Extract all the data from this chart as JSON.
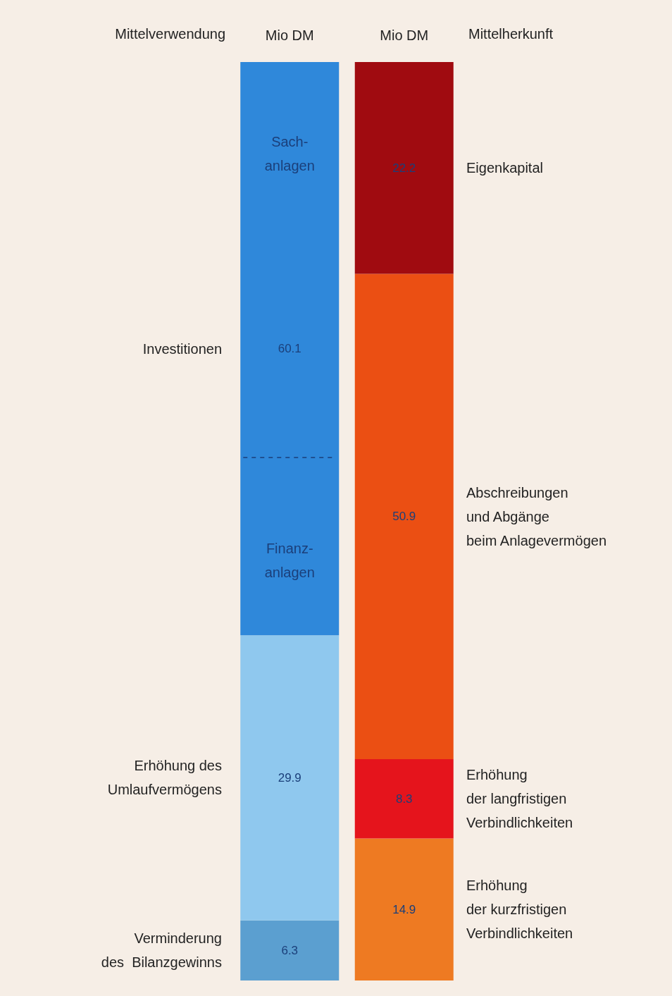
{
  "chart_data": {
    "type": "bar",
    "stacked": true,
    "categories": [
      "Mio DM",
      "Mio DM"
    ],
    "data_labels": true,
    "legend": false,
    "annotations": [
      "Mittelverwendung",
      "Mittelherkunft",
      "Sach-\nanlagen",
      "Finanz-\nanlagen"
    ],
    "series": [
      {
        "name": "Verminderung\ndes  Bilanzgewinns",
        "color": "#5b9fd0",
        "values": [
          6.3,
          null
        ]
      },
      {
        "name": "Erhöhung des\nUmlaufvermögens",
        "color": "#8fc8ee",
        "values": [
          29.9,
          null
        ]
      },
      {
        "name": "Investitionen",
        "color": "#2f88da",
        "values": [
          60.1,
          null
        ]
      },
      {
        "name": "Erhöhung\nder kurzfristigen\nVerbindlichkeiten",
        "color": "#ee7a22",
        "values": [
          null,
          14.9
        ]
      },
      {
        "name": "Erhöhung\nder langfristigen\nVerbindlichkeiten",
        "color": "#e5141c",
        "values": [
          null,
          8.3
        ]
      },
      {
        "name": "Abschreibungen\nund Abgänge\nbeim Anlagevermögen",
        "color": "#eb4f13",
        "values": [
          null,
          50.9
        ]
      },
      {
        "name": "Eigenkapital",
        "color": "#a00b10",
        "values": [
          null,
          22.2
        ]
      }
    ]
  }
}
